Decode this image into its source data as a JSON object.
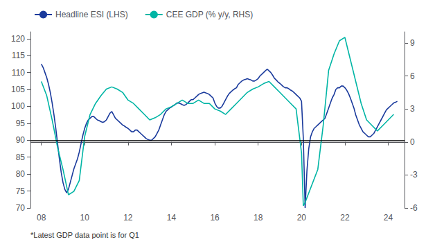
{
  "chart_data": {
    "type": "line",
    "xlim": [
      2007.5,
      2024.75
    ],
    "xticks": [
      {
        "value": 2008,
        "label": "08"
      },
      {
        "value": 2010,
        "label": "10"
      },
      {
        "value": 2012,
        "label": "12"
      },
      {
        "value": 2014,
        "label": "14"
      },
      {
        "value": 2016,
        "label": "16"
      },
      {
        "value": 2018,
        "label": "18"
      },
      {
        "value": 2020,
        "label": "20"
      },
      {
        "value": 2022,
        "label": "22"
      },
      {
        "value": 2024,
        "label": "24"
      }
    ],
    "ylim": [
      70,
      122
    ],
    "yticks": [
      70,
      75,
      80,
      85,
      90,
      95,
      100,
      105,
      110,
      115,
      120
    ],
    "y2lim": [
      -6,
      10
    ],
    "y2ticks": [
      -6,
      -3,
      0,
      3,
      6,
      9
    ],
    "hline": 90,
    "grid": false,
    "legend": "upper left",
    "annotation": "*Latest GDP data point is for Q1",
    "series": [
      {
        "name": "Headline ESI (LHS)",
        "color": "#1a3a9c",
        "x": [
          2008.0,
          2008.083,
          2008.167,
          2008.25,
          2008.333,
          2008.417,
          2008.5,
          2008.583,
          2008.667,
          2008.75,
          2008.833,
          2008.917,
          2009.0,
          2009.083,
          2009.167,
          2009.25,
          2009.333,
          2009.417,
          2009.5,
          2009.583,
          2009.667,
          2009.75,
          2009.833,
          2009.917,
          2010.0,
          2010.083,
          2010.167,
          2010.25,
          2010.333,
          2010.417,
          2010.5,
          2010.583,
          2010.667,
          2010.75,
          2010.833,
          2010.917,
          2011.0,
          2011.083,
          2011.167,
          2011.25,
          2011.333,
          2011.417,
          2011.5,
          2011.583,
          2011.667,
          2011.75,
          2011.833,
          2011.917,
          2012.0,
          2012.083,
          2012.167,
          2012.25,
          2012.333,
          2012.417,
          2012.5,
          2012.583,
          2012.667,
          2012.75,
          2012.833,
          2012.917,
          2013.0,
          2013.083,
          2013.167,
          2013.25,
          2013.333,
          2013.417,
          2013.5,
          2013.583,
          2013.667,
          2013.75,
          2013.833,
          2013.917,
          2014.0,
          2014.083,
          2014.167,
          2014.25,
          2014.333,
          2014.417,
          2014.5,
          2014.583,
          2014.667,
          2014.75,
          2014.833,
          2014.917,
          2015.0,
          2015.083,
          2015.167,
          2015.25,
          2015.333,
          2015.417,
          2015.5,
          2015.583,
          2015.667,
          2015.75,
          2015.833,
          2015.917,
          2016.0,
          2016.083,
          2016.167,
          2016.25,
          2016.333,
          2016.417,
          2016.5,
          2016.583,
          2016.667,
          2016.75,
          2016.833,
          2016.917,
          2017.0,
          2017.083,
          2017.167,
          2017.25,
          2017.333,
          2017.417,
          2017.5,
          2017.583,
          2017.667,
          2017.75,
          2017.833,
          2017.917,
          2018.0,
          2018.083,
          2018.167,
          2018.25,
          2018.333,
          2018.417,
          2018.5,
          2018.583,
          2018.667,
          2018.75,
          2018.833,
          2018.917,
          2019.0,
          2019.083,
          2019.167,
          2019.25,
          2019.333,
          2019.417,
          2019.5,
          2019.583,
          2019.667,
          2019.75,
          2019.833,
          2019.917,
          2020.0,
          2020.083,
          2020.167,
          2020.25,
          2020.333,
          2020.417,
          2020.5,
          2020.583,
          2020.667,
          2020.75,
          2020.833,
          2020.917,
          2021.0,
          2021.083,
          2021.167,
          2021.25,
          2021.333,
          2021.417,
          2021.5,
          2021.583,
          2021.667,
          2021.75,
          2021.833,
          2021.917,
          2022.0,
          2022.083,
          2022.167,
          2022.25,
          2022.333,
          2022.417,
          2022.5,
          2022.583,
          2022.667,
          2022.75,
          2022.833,
          2022.917,
          2023.0,
          2023.083,
          2023.167,
          2023.25,
          2023.333,
          2023.417,
          2023.5,
          2023.583,
          2023.667,
          2023.75,
          2023.833,
          2023.917,
          2024.0,
          2024.083,
          2024.167,
          2024.25,
          2024.333,
          2024.417
        ],
        "values": [
          112.5,
          111.5,
          110.0,
          108.5,
          106.5,
          104.0,
          101.0,
          97.5,
          93.5,
          89.0,
          84.5,
          80.5,
          77.5,
          75.5,
          74.5,
          75.5,
          77.5,
          79.5,
          81.5,
          83.0,
          84.5,
          86.5,
          89.0,
          91.5,
          93.5,
          95.0,
          96.0,
          96.5,
          97.0,
          97.0,
          96.5,
          96.0,
          95.8,
          95.5,
          95.3,
          95.5,
          96.0,
          97.0,
          98.0,
          98.5,
          97.5,
          96.5,
          96.0,
          95.5,
          95.0,
          94.5,
          94.2,
          93.8,
          93.5,
          93.0,
          92.5,
          92.5,
          93.0,
          93.0,
          92.5,
          92.0,
          91.5,
          91.0,
          90.5,
          90.2,
          90.0,
          90.0,
          90.5,
          91.0,
          92.0,
          93.0,
          94.5,
          96.0,
          97.5,
          98.5,
          99.0,
          99.5,
          99.8,
          100.2,
          100.5,
          101.0,
          101.0,
          100.8,
          100.5,
          100.3,
          100.5,
          101.0,
          101.5,
          102.0,
          102.0,
          102.5,
          103.0,
          103.5,
          103.8,
          104.0,
          104.2,
          104.0,
          103.8,
          103.5,
          103.0,
          102.5,
          101.0,
          100.0,
          99.5,
          99.5,
          100.0,
          101.0,
          102.0,
          103.0,
          103.8,
          104.3,
          104.8,
          105.2,
          105.5,
          106.5,
          107.0,
          107.5,
          107.8,
          108.0,
          108.2,
          108.0,
          107.8,
          107.5,
          107.5,
          107.8,
          108.2,
          109.0,
          109.5,
          110.0,
          110.5,
          111.0,
          110.5,
          110.0,
          109.2,
          108.3,
          107.8,
          107.2,
          106.8,
          106.3,
          105.8,
          105.5,
          105.5,
          105.2,
          104.8,
          104.5,
          104.0,
          103.5,
          103.0,
          102.5,
          101.5,
          90.5,
          70.0,
          81.0,
          87.5,
          91.0,
          92.5,
          93.5,
          94.0,
          94.5,
          95.0,
          95.5,
          96.0,
          96.5,
          98.0,
          99.5,
          101.0,
          102.5,
          103.5,
          105.0,
          105.5,
          105.5,
          106.0,
          106.0,
          105.5,
          104.8,
          103.8,
          102.5,
          101.0,
          99.5,
          97.5,
          96.0,
          94.5,
          93.5,
          92.5,
          92.0,
          91.5,
          91.0,
          91.0,
          91.5,
          92.0,
          93.0,
          94.0,
          95.0,
          96.0,
          97.0,
          98.0,
          99.0,
          99.5,
          100.0,
          100.5,
          101.0,
          101.2,
          101.5
        ]
      },
      {
        "name": "CEE GDP (% y/y, RHS)",
        "color": "#00b5a5",
        "axis": "y2",
        "x": [
          2008.0,
          2008.25,
          2008.5,
          2008.75,
          2009.0,
          2009.25,
          2009.5,
          2009.75,
          2010.0,
          2010.25,
          2010.5,
          2010.75,
          2011.0,
          2011.25,
          2011.5,
          2011.75,
          2012.0,
          2012.25,
          2012.5,
          2012.75,
          2013.0,
          2013.25,
          2013.5,
          2013.75,
          2014.0,
          2014.25,
          2014.5,
          2014.75,
          2015.0,
          2015.25,
          2015.5,
          2015.75,
          2016.0,
          2016.25,
          2016.5,
          2016.75,
          2017.0,
          2017.25,
          2017.5,
          2017.75,
          2018.0,
          2018.25,
          2018.5,
          2018.75,
          2019.0,
          2019.25,
          2019.5,
          2019.75,
          2020.0,
          2020.083,
          2020.167,
          2020.75,
          2021.0,
          2021.25,
          2021.5,
          2021.75,
          2022.0,
          2022.25,
          2022.5,
          2022.75,
          2023.0,
          2023.25,
          2023.5,
          2023.75,
          2024.0,
          2024.25
        ],
        "values": [
          5.5,
          4.2,
          2.0,
          -0.5,
          -2.5,
          -4.8,
          -4.5,
          -3.5,
          0.5,
          2.5,
          3.5,
          4.2,
          4.8,
          5.0,
          4.8,
          4.5,
          3.8,
          3.5,
          3.0,
          2.5,
          2.0,
          2.2,
          2.5,
          3.0,
          3.2,
          3.5,
          3.8,
          3.5,
          3.5,
          3.8,
          3.5,
          3.5,
          3.0,
          2.8,
          2.5,
          3.0,
          3.5,
          4.0,
          4.5,
          4.8,
          5.0,
          5.3,
          5.5,
          5.0,
          4.5,
          4.0,
          3.5,
          3.0,
          -1.0,
          -5.8,
          -5.5,
          -2.5,
          1.5,
          6.5,
          8.0,
          9.2,
          9.5,
          7.5,
          5.5,
          3.5,
          2.0,
          1.5,
          1.0,
          1.5,
          2.0,
          2.5
        ]
      }
    ]
  }
}
